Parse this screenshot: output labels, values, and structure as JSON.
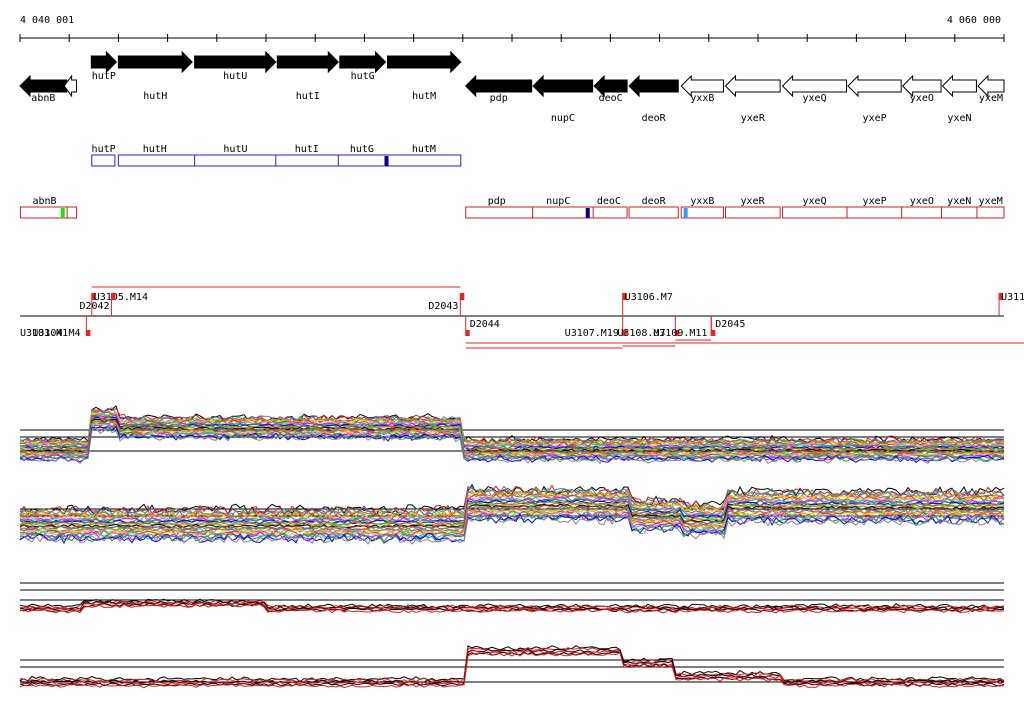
{
  "axis": {
    "start_label": "4 040 001",
    "end_label": "4 060 000",
    "start": 4040001,
    "end": 4060000
  },
  "genes": [
    {
      "name": "abnB",
      "start": 4040001,
      "end": 4040950,
      "strand": "-",
      "fill": "black"
    },
    {
      "name": "",
      "start": 4040900,
      "end": 4041150,
      "strand": "-",
      "fill": "white"
    },
    {
      "name": "hutP",
      "start": 4041450,
      "end": 4041960,
      "strand": "+",
      "fill": "black"
    },
    {
      "name": "hutH",
      "start": 4042000,
      "end": 4043500,
      "strand": "+",
      "fill": "black"
    },
    {
      "name": "hutU",
      "start": 4043550,
      "end": 4045200,
      "strand": "+",
      "fill": "black"
    },
    {
      "name": "hutI",
      "start": 4045230,
      "end": 4046470,
      "strand": "+",
      "fill": "black"
    },
    {
      "name": "hutG",
      "start": 4046500,
      "end": 4047430,
      "strand": "+",
      "fill": "black"
    },
    {
      "name": "hutM",
      "start": 4047470,
      "end": 4048960,
      "strand": "+",
      "fill": "black"
    },
    {
      "name": "pdp",
      "start": 4049060,
      "end": 4050400,
      "strand": "-",
      "fill": "black"
    },
    {
      "name": "nupC",
      "start": 4050430,
      "end": 4051640,
      "strand": "-",
      "fill": "black"
    },
    {
      "name": "deoC",
      "start": 4051670,
      "end": 4052340,
      "strand": "-",
      "fill": "black"
    },
    {
      "name": "deoR",
      "start": 4052380,
      "end": 4053380,
      "strand": "-",
      "fill": "black"
    },
    {
      "name": "yxxB",
      "start": 4053440,
      "end": 4054300,
      "strand": "-",
      "fill": "white"
    },
    {
      "name": "yxeR",
      "start": 4054340,
      "end": 4055450,
      "strand": "-",
      "fill": "white"
    },
    {
      "name": "yxeQ",
      "start": 4055500,
      "end": 4056800,
      "strand": "-",
      "fill": "white"
    },
    {
      "name": "yxeP",
      "start": 4056830,
      "end": 4057910,
      "strand": "-",
      "fill": "white"
    },
    {
      "name": "yxeO",
      "start": 4057940,
      "end": 4058720,
      "strand": "-",
      "fill": "white"
    },
    {
      "name": "yxeN",
      "start": 4058750,
      "end": 4059440,
      "strand": "-",
      "fill": "white"
    },
    {
      "name": "yxeM",
      "start": 4059470,
      "end": 4060000,
      "strand": "-",
      "fill": "white"
    }
  ],
  "operons_blue": [
    {
      "start": 4041460,
      "end": 4041930,
      "labels": [
        {
          "text": "hutP",
          "pos": 4041700
        }
      ]
    },
    {
      "start": 4042000,
      "end": 4048960,
      "labels": [
        {
          "text": "hutH",
          "pos": 4042740
        },
        {
          "text": "hutU",
          "pos": 4044380
        },
        {
          "text": "hutI",
          "pos": 4045830
        },
        {
          "text": "hutG",
          "pos": 4046950
        },
        {
          "text": "hutM",
          "pos": 4048210
        }
      ],
      "dividers": [
        4043550,
        4045200,
        4046470
      ],
      "marks": [
        {
          "pos": 4047450,
          "color": "#00008b"
        }
      ]
    }
  ],
  "operons_red": [
    {
      "start": 4040010,
      "end": 4041150,
      "labels": [
        {
          "text": "abnB",
          "pos": 4040500
        }
      ],
      "dividers": [
        4040960
      ],
      "marks": [
        {
          "pos": 4040870,
          "color": "#22dd22"
        }
      ]
    },
    {
      "start": 4049060,
      "end": 4052340,
      "labels": [
        {
          "text": "pdp",
          "pos": 4049690
        },
        {
          "text": "nupC",
          "pos": 4050940
        },
        {
          "text": "deoC",
          "pos": 4051970
        }
      ],
      "dividers": [
        4050420,
        4051650
      ],
      "marks": [
        {
          "pos": 4051540,
          "color": "#00008b"
        }
      ]
    },
    {
      "start": 4052380,
      "end": 4053380,
      "labels": [
        {
          "text": "deoR",
          "pos": 4052880
        }
      ]
    },
    {
      "start": 4053440,
      "end": 4054300,
      "labels": [
        {
          "text": "yxxB",
          "pos": 4053870
        }
      ],
      "marks": [
        {
          "pos": 4053530,
          "color": "#3399ff"
        }
      ]
    },
    {
      "start": 4054340,
      "end": 4055450,
      "labels": [
        {
          "text": "yxeR",
          "pos": 4054890
        }
      ]
    },
    {
      "start": 4055500,
      "end": 4060000,
      "labels": [
        {
          "text": "yxeQ",
          "pos": 4056150
        },
        {
          "text": "yxeP",
          "pos": 4057370
        },
        {
          "text": "yxeO",
          "pos": 4058330
        },
        {
          "text": "yxeN",
          "pos": 4059090
        },
        {
          "text": "yxeM",
          "pos": 4059730
        }
      ],
      "dividers": [
        4056810,
        4057920,
        4058730,
        4059450
      ]
    }
  ],
  "features_top": [
    {
      "label": "U3105.M14",
      "pos": 4041460
    },
    {
      "label": "D2042",
      "pos": 4041860
    },
    {
      "label": "D2043",
      "pos": 4048950
    },
    {
      "label": "U3106.M7",
      "pos": 4052250
    },
    {
      "label": "U311",
      "pos": 4059900
    }
  ],
  "features_bottom": [
    {
      "label": "U3104.M4",
      "pos": 4041350
    },
    {
      "label": "D2044",
      "pos": 4049060
    },
    {
      "label": "U3107.M19",
      "pos": 4052250
    },
    {
      "label": "U3108.M7",
      "pos": 4053320
    },
    {
      "label": "U3109.M11",
      "pos": 4054050
    },
    {
      "label": "D2045",
      "pos": 4054050
    }
  ],
  "features_bottom_overlap": "U3103.M1"
}
